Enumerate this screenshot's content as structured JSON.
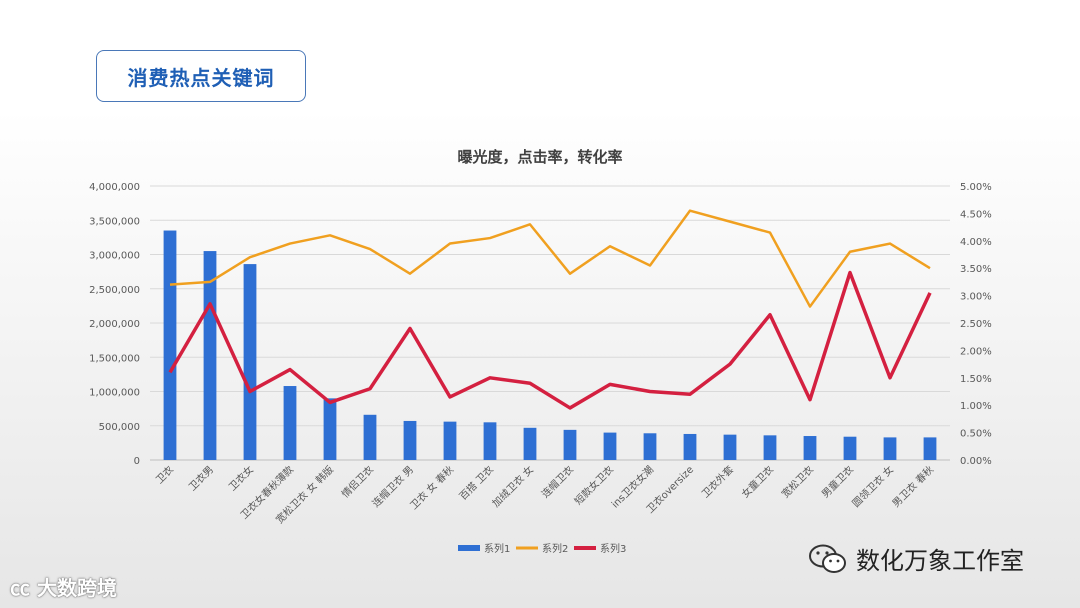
{
  "header": {
    "title": "消费热点关键词"
  },
  "watermarks": {
    "left": "大数跨境",
    "right": "数化万象工作室"
  },
  "icons": {
    "wechat": "wechat-icon",
    "brand": "brand-logo-icon"
  },
  "chart_data": {
    "type": "bar",
    "title": "曝光度，点击率，转化率",
    "categories": [
      "卫衣",
      "卫衣男",
      "卫衣女",
      "卫衣女春秋薄款",
      "宽松卫衣 女 韩版",
      "情侣卫衣",
      "连帽卫衣 男",
      "卫衣 女 春秋",
      "百搭 卫衣",
      "加绒卫衣 女",
      "连帽卫衣",
      "短款女卫衣",
      "ins卫衣女潮",
      "卫衣oversize",
      "卫衣外套",
      "女童卫衣",
      "宽松卫衣",
      "男童卫衣",
      "圆领卫衣 女",
      "男卫衣 春秋"
    ],
    "series": [
      {
        "name": "系列1",
        "type": "bar",
        "axis": "left",
        "color": "#2e6fd3",
        "values": [
          3350000,
          3050000,
          2860000,
          1080000,
          900000,
          660000,
          570000,
          560000,
          550000,
          470000,
          440000,
          400000,
          390000,
          380000,
          370000,
          360000,
          350000,
          340000,
          330000,
          330000
        ]
      },
      {
        "name": "系列2",
        "type": "line",
        "axis": "right",
        "color": "#f0a020",
        "values": [
          3.2,
          3.25,
          3.7,
          3.95,
          4.1,
          3.85,
          3.4,
          3.95,
          4.05,
          4.3,
          3.4,
          3.9,
          3.55,
          4.55,
          4.35,
          4.15,
          2.8,
          3.8,
          3.95,
          3.5
        ]
      },
      {
        "name": "系列3",
        "type": "line",
        "axis": "right",
        "color": "#d42040",
        "values": [
          1.6,
          2.85,
          1.25,
          1.65,
          1.05,
          1.3,
          2.4,
          1.15,
          1.5,
          1.4,
          0.95,
          1.38,
          1.25,
          1.2,
          1.75,
          2.65,
          1.1,
          3.42,
          1.5,
          3.05
        ]
      }
    ],
    "y_left": {
      "min": 0,
      "max": 4000000,
      "ticks": [
        "0",
        "500,000",
        "1,000,000",
        "1,500,000",
        "2,000,000",
        "2,500,000",
        "3,000,000",
        "3,500,000",
        "4,000,000"
      ]
    },
    "y_right": {
      "min": 0,
      "max": 5,
      "ticks": [
        "0.00%",
        "0.50%",
        "1.00%",
        "1.50%",
        "2.00%",
        "2.50%",
        "3.00%",
        "3.50%",
        "4.00%",
        "4.50%",
        "5.00%"
      ]
    },
    "grid": true,
    "legend_position": "bottom"
  }
}
